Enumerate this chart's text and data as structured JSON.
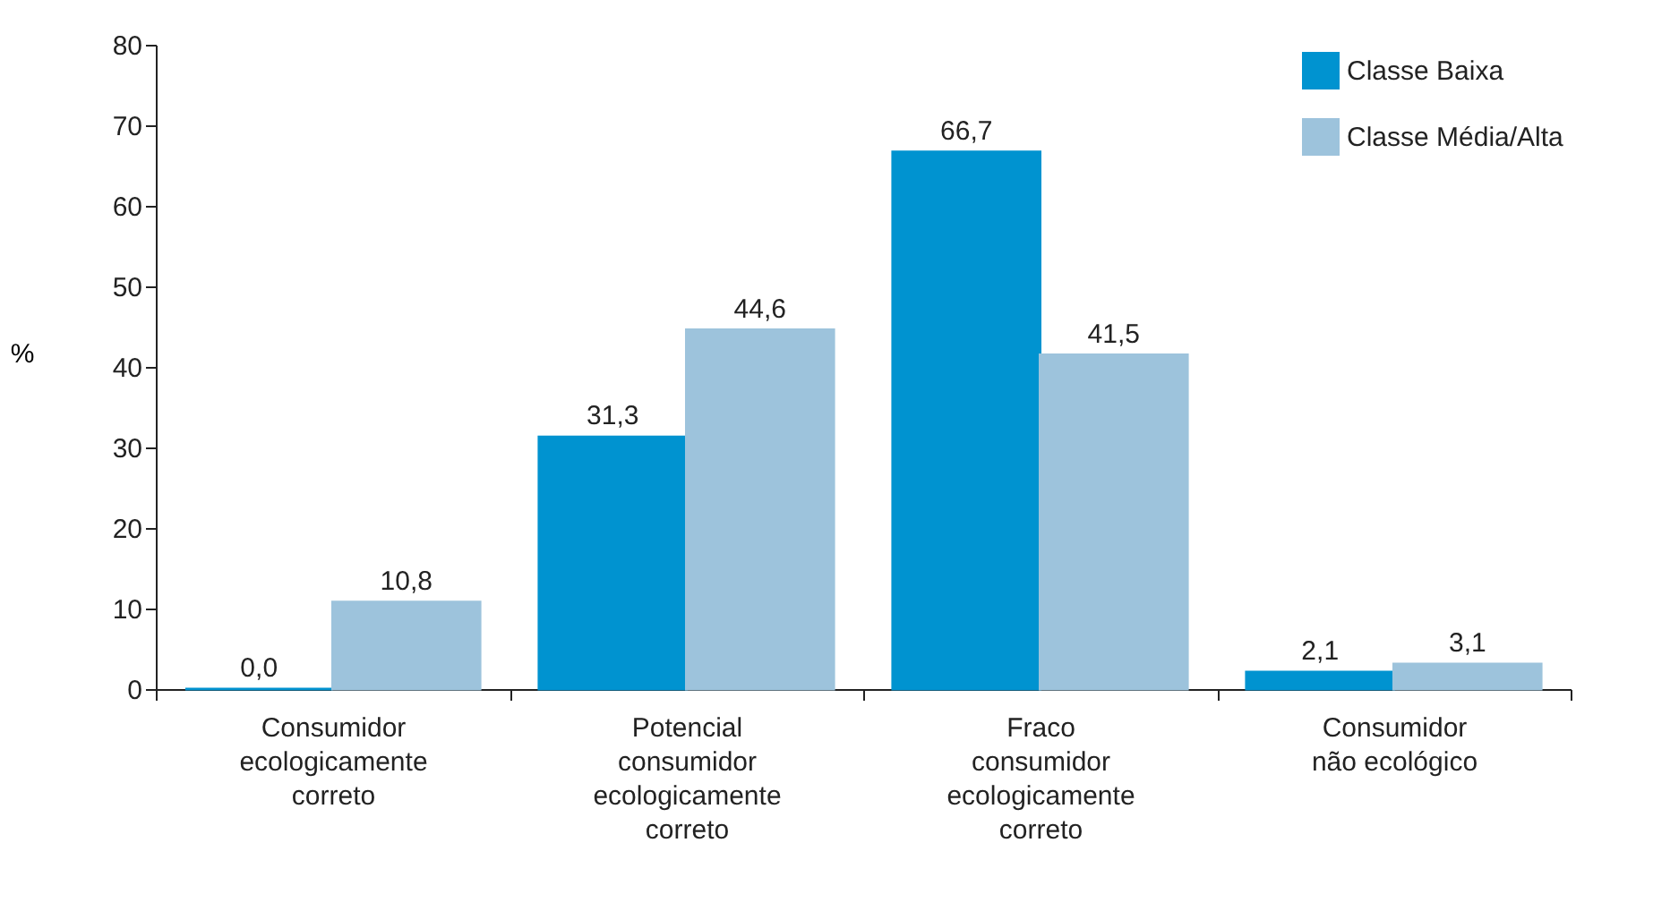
{
  "chart_data": {
    "type": "bar",
    "ylabel": "%",
    "categories": [
      "Consumidor ecologicamente correto",
      "Potencial consumidor ecologicamente correto",
      "Fraco consumidor ecologicamente correto",
      "Consumidor não ecológico"
    ],
    "series": [
      {
        "name": "Classe Baixa",
        "color": "#0093d0",
        "values": [
          0.0,
          31.3,
          66.7,
          2.1
        ],
        "value_labels": [
          "0,0",
          "31,3",
          "66,7",
          "2,1"
        ]
      },
      {
        "name": "Classe Média/Alta",
        "color": "#9dc3dc",
        "values": [
          10.8,
          44.6,
          41.5,
          3.1
        ],
        "value_labels": [
          "10,8",
          "44,6",
          "41,5",
          "3,1"
        ]
      }
    ],
    "ylim": [
      0,
      80
    ],
    "yticks": [
      0,
      10,
      20,
      30,
      40,
      50,
      60,
      70,
      80
    ],
    "grid": false,
    "legend": "top right"
  }
}
